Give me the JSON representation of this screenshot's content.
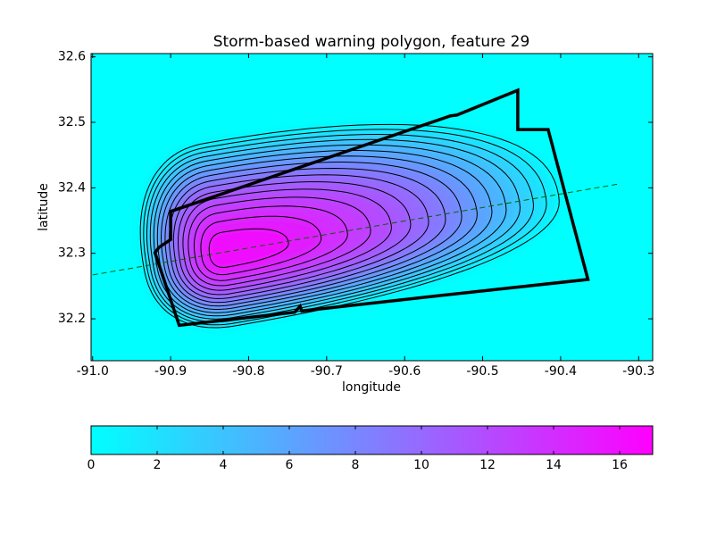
{
  "chart_data": {
    "type": "contour",
    "title": "Storm-based warning polygon, feature 29",
    "x_label": "longitude",
    "y_label": "latitude",
    "xlim": [
      -91.002,
      -90.282
    ],
    "ylim": [
      32.136,
      32.605
    ],
    "xticks": [
      {
        "value": -91.0,
        "label": "-91.0"
      },
      -90.9,
      -90.8,
      -90.7,
      -90.6,
      -90.5,
      -90.4,
      -90.3
    ],
    "yticks": [
      32.2,
      32.3,
      32.4,
      32.5,
      32.6
    ],
    "peak": {
      "x": -90.83,
      "y": 32.3,
      "value": 17
    },
    "contour_levels": [
      1,
      2,
      3,
      4,
      5,
      6,
      7,
      8,
      9,
      10,
      11,
      12,
      13,
      14,
      15,
      16
    ],
    "colorbar": {
      "lim": [
        0,
        17
      ],
      "ticks": [
        0,
        2,
        4,
        6,
        8,
        10,
        12,
        14,
        16
      ],
      "colors": [
        "#00ffff",
        "#ff00ff"
      ]
    },
    "polygon": {
      "x": [
        -90.9,
        -90.9,
        -90.915,
        -90.92,
        -90.889,
        -90.741,
        -90.734,
        -90.732,
        -90.566,
        -90.365,
        -90.416,
        -90.455,
        -90.455,
        -90.533,
        -90.541
      ],
      "y": [
        32.364,
        32.321,
        32.309,
        32.301,
        32.19,
        32.21,
        32.219,
        32.212,
        32.234,
        32.26,
        32.489,
        32.489,
        32.549,
        32.511,
        32.51
      ],
      "color": "#000000"
    },
    "track": {
      "x": [
        -91.0,
        -90.325
      ],
      "y": [
        32.267,
        32.406
      ],
      "color": "#006400"
    }
  }
}
